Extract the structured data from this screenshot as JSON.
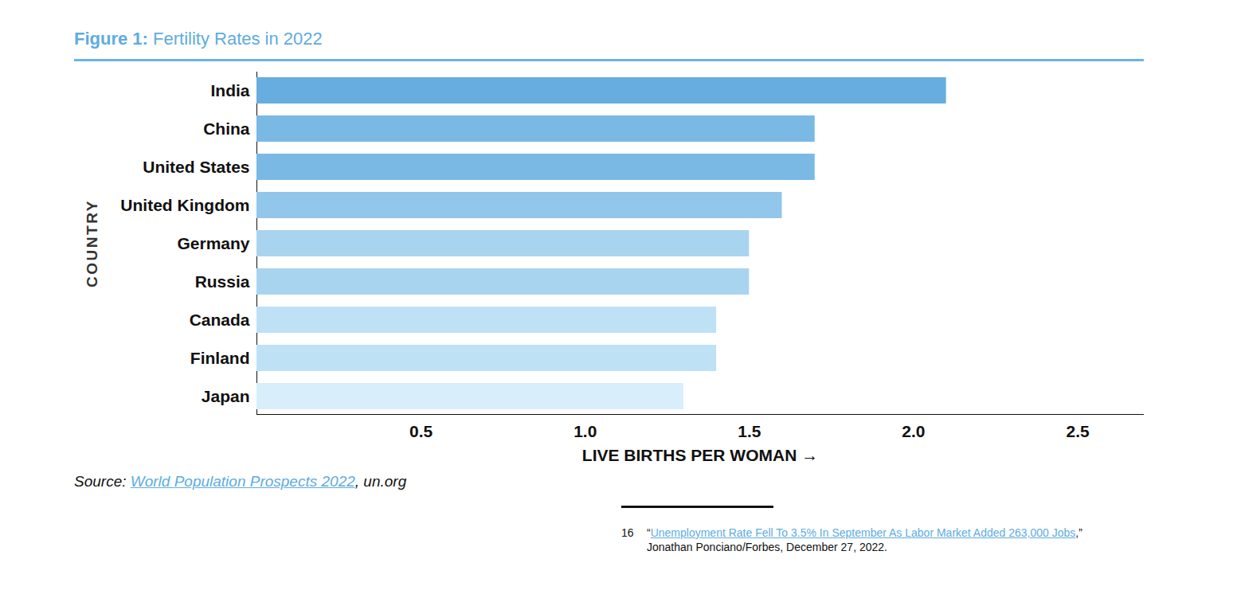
{
  "chart_data": {
    "type": "bar",
    "orientation": "horizontal",
    "figure_label": "Figure 1:",
    "title": "Fertility Rates in 2022",
    "x_label": "LIVE BIRTHS PER WOMAN",
    "y_label": "COUNTRY",
    "categories": [
      "India",
      "China",
      "United States",
      "United Kingdom",
      "Germany",
      "Russia",
      "Canada",
      "Finland",
      "Japan"
    ],
    "values": [
      2.1,
      1.7,
      1.7,
      1.6,
      1.5,
      1.5,
      1.4,
      1.4,
      1.3
    ],
    "colors": [
      "#67addf",
      "#79b9e4",
      "#79b9e4",
      "#92c6ea",
      "#a8d4f0",
      "#a8d4f0",
      "#bfe1f5",
      "#bfe1f5",
      "#d8eefa"
    ],
    "xlim": [
      0,
      2.7
    ],
    "xticks": [
      0.5,
      {
        "value": 1,
        "label": "1.0"
      },
      1.5,
      {
        "value": 2,
        "label": "2.0"
      },
      2.5
    ],
    "grid": false,
    "source": {
      "label": "Source:",
      "link": "World Population Prospects 2022",
      "rest": ", un.org"
    }
  },
  "footnote": {
    "number": "16",
    "link": "Unemployment Rate Fell To 3.5% In September As Labor Market Added 263,000 Jobs",
    "open_quote": "“",
    "close_quote": ",”",
    "line2": "Jonathan Ponciano/Forbes, December 27, 2022."
  }
}
